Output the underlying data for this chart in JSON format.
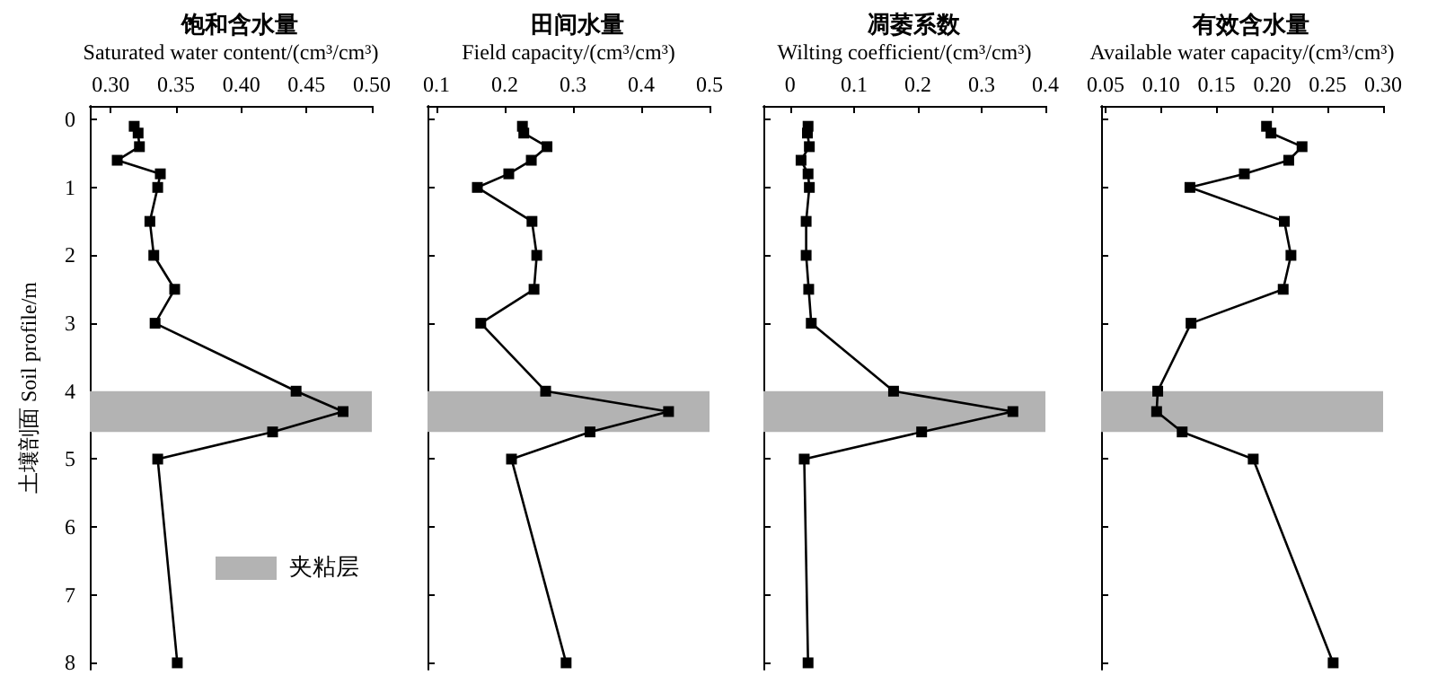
{
  "chart_data": [
    {
      "type": "line",
      "title": "饱和含水量",
      "xlabel": "Saturated water content/(cm³/cm³)",
      "ylabel": "土壤剖面 Soil profile/m",
      "marker": "square",
      "line_style": "solid",
      "grid": false,
      "xlim": [
        0.284,
        0.5
      ],
      "xticks": [
        {
          "value": 0.3,
          "label": "0.30"
        },
        0.35,
        {
          "value": 0.4,
          "label": "0.40"
        },
        0.45,
        {
          "value": 0.5,
          "label": "0.50"
        }
      ],
      "ylim": [
        8.1,
        -0.2
      ],
      "yticks": [
        0,
        1,
        2,
        3,
        4,
        5,
        6,
        7,
        8
      ],
      "bands": [
        {
          "axis": "y",
          "from": 4,
          "to": 4.6,
          "color": "#b3b3b3",
          "label": "夹粘层"
        }
      ],
      "series": [
        {
          "color": "#000000",
          "x": [
            0.318,
            0.321,
            0.322,
            0.305,
            0.338,
            0.336,
            0.33,
            0.333,
            0.349,
            0.334,
            0.442,
            0.478,
            0.424,
            0.336,
            0.351
          ],
          "values": [
            0.1,
            0.2,
            0.4,
            0.6,
            0.8,
            1,
            1.5,
            2,
            2.5,
            3,
            4,
            4.3,
            4.6,
            5,
            8
          ]
        }
      ]
    },
    {
      "type": "line",
      "title": "田间水量",
      "xlabel": "Field capacity/(cm³/cm³)",
      "marker": "square",
      "line_style": "solid",
      "grid": false,
      "tick_labels": "x",
      "xlim": [
        0.087,
        0.5
      ],
      "xticks": [
        0.1,
        0.2,
        0.3,
        0.4,
        0.5
      ],
      "ylim": [
        8.1,
        -0.2
      ],
      "yticks": [
        0,
        1,
        2,
        3,
        4,
        5,
        6,
        7,
        8
      ],
      "bands": [
        {
          "axis": "y",
          "from": 4,
          "to": 4.6,
          "color": "#b3b3b3"
        }
      ],
      "series": [
        {
          "color": "#000000",
          "x": [
            0.226,
            0.228,
            0.262,
            0.239,
            0.206,
            0.16,
            0.24,
            0.247,
            0.243,
            0.165,
            0.26,
            0.44,
            0.325,
            0.21,
            0.29
          ],
          "values": [
            0.1,
            0.2,
            0.4,
            0.6,
            0.8,
            1,
            1.5,
            2,
            2.5,
            3,
            4,
            4.3,
            4.6,
            5,
            8
          ]
        }
      ]
    },
    {
      "type": "line",
      "title": "凋萎系数",
      "xlabel": "Wilting coefficient/(cm³/cm³)",
      "marker": "square",
      "line_style": "solid",
      "grid": false,
      "tick_labels": "x",
      "xlim": [
        -0.042,
        0.4
      ],
      "xticks": [
        0,
        0.1,
        0.2,
        0.3,
        0.4
      ],
      "ylim": [
        8.1,
        -0.2
      ],
      "yticks": [
        0,
        1,
        2,
        3,
        4,
        5,
        6,
        7,
        8
      ],
      "bands": [
        {
          "axis": "y",
          "from": 4,
          "to": 4.6,
          "color": "#b3b3b3"
        }
      ],
      "series": [
        {
          "color": "#000000",
          "x": [
            0.028,
            0.027,
            0.03,
            0.017,
            0.028,
            0.03,
            0.025,
            0.025,
            0.029,
            0.033,
            0.162,
            0.349,
            0.206,
            0.022,
            0.028
          ],
          "values": [
            0.1,
            0.2,
            0.4,
            0.6,
            0.8,
            1,
            1.5,
            2,
            2.5,
            3,
            4,
            4.3,
            4.6,
            5,
            8
          ]
        }
      ]
    },
    {
      "type": "line",
      "title": "有效含水量",
      "xlabel": "Available water capacity/(cm³/cm³)",
      "marker": "square",
      "line_style": "solid",
      "grid": false,
      "tick_labels": "x",
      "xlim": [
        0.046,
        0.3
      ],
      "xticks": [
        0.05,
        {
          "value": 0.1,
          "label": "0.10"
        },
        0.15,
        {
          "value": 0.2,
          "label": "0.20"
        },
        0.25,
        {
          "value": 0.3,
          "label": "0.30"
        }
      ],
      "ylim": [
        8.1,
        -0.2
      ],
      "yticks": [
        0,
        1,
        2,
        3,
        4,
        5,
        6,
        7,
        8
      ],
      "bands": [
        {
          "axis": "y",
          "from": 4,
          "to": 4.6,
          "color": "#b3b3b3"
        }
      ],
      "series": [
        {
          "color": "#000000",
          "x": [
            0.195,
            0.199,
            0.227,
            0.215,
            0.175,
            0.126,
            0.211,
            0.217,
            0.21,
            0.127,
            0.097,
            0.096,
            0.119,
            0.183,
            0.255
          ],
          "values": [
            0.1,
            0.2,
            0.4,
            0.6,
            0.8,
            1,
            1.5,
            2,
            2.5,
            3,
            4,
            4.3,
            4.6,
            5,
            8
          ]
        }
      ]
    }
  ]
}
